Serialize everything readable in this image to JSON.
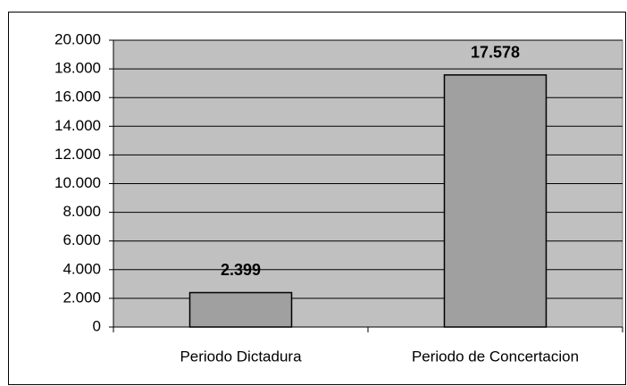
{
  "chart_data": {
    "type": "bar",
    "categories": [
      "Periodo Dictadura",
      "Periodo de Concertacion"
    ],
    "values": [
      2399,
      17578
    ],
    "value_labels": [
      "2.399",
      "17.578"
    ],
    "color": "#a0a0a0",
    "plot_background": "#c0c0c0",
    "ylim": [
      0,
      20000
    ],
    "yticks": [
      0,
      {
        "value": 2000,
        "label": "2.000"
      },
      {
        "value": 4000,
        "label": "4.000"
      },
      {
        "value": 6000,
        "label": "6.000"
      },
      {
        "value": 8000,
        "label": "8.000"
      },
      {
        "value": 10000,
        "label": "10.000"
      },
      {
        "value": 12000,
        "label": "12.000"
      },
      {
        "value": 14000,
        "label": "14.000"
      },
      {
        "value": 16000,
        "label": "16.000"
      },
      {
        "value": 18000,
        "label": "18.000"
      },
      {
        "value": 20000,
        "label": "20.000"
      }
    ],
    "grid": true
  }
}
